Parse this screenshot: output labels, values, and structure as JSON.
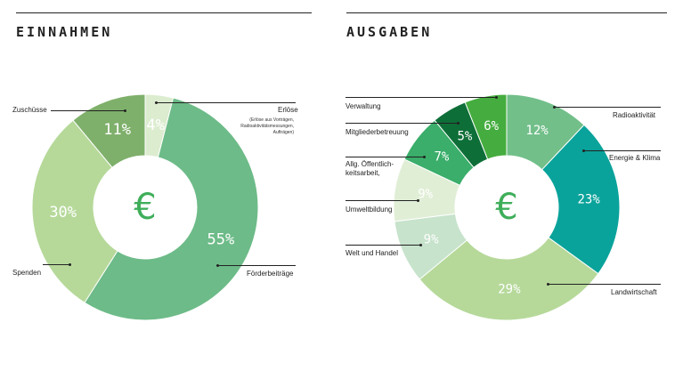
{
  "chart_data": [
    {
      "type": "pie",
      "title": "EINNAHMEN",
      "center_symbol": "€",
      "categories": [
        "Erlöse",
        "Förderbeiträge",
        "Spenden",
        "Zuschüsse"
      ],
      "values": [
        4,
        55,
        30,
        11
      ],
      "labels": [
        "4%",
        "55%",
        "30%",
        "11%"
      ],
      "colors": [
        "#dceccf",
        "#6dbb88",
        "#b6d99a",
        "#7fb06b"
      ],
      "annotations": {
        "Erlöse": "(Erlöse aus Vorträgen, Radioaktivitätsmessungen, Aufträgen)"
      }
    },
    {
      "type": "pie",
      "title": "AUSGABEN",
      "center_symbol": "€",
      "categories": [
        "Radioaktivität",
        "Energie & Klima",
        "Landwirtschaft",
        "Welt und Handel",
        "Umweltbildung",
        "Allg. Öffentlichkeitsarbeit,",
        "Mitgliederbetreuung",
        "Verwaltung"
      ],
      "values": [
        12,
        23,
        29,
        9,
        9,
        7,
        5,
        6
      ],
      "labels": [
        "12%",
        "23%",
        "29%",
        "9%",
        "9%",
        "7%",
        "5%",
        "6%"
      ],
      "colors": [
        "#72bf8a",
        "#0aa39b",
        "#b6d99a",
        "#c7e3cc",
        "#e0eed6",
        "#3aae6a",
        "#0e6e38",
        "#45ad3f"
      ]
    }
  ],
  "left": {
    "title": "EINNAHMEN",
    "center": "€",
    "labels": {
      "erloese": "Erlöse",
      "erloese_note_1": "(Erlöse aus Vorträgen,",
      "erloese_note_2": "Radioaktivitätsmessungen,",
      "erloese_note_3": "Aufträgen)",
      "zuschuesse": "Zuschüsse",
      "spenden": "Spenden",
      "foerderbeitraege": "Förderbeiträge"
    }
  },
  "right": {
    "title": "AUSGABEN",
    "center": "€",
    "labels": {
      "verwaltung": "Verwaltung",
      "mitglieder": "Mitgliederbetreuung",
      "oeff_1": "Allg. Öffentlich-",
      "oeff_2": "keitsarbeit,",
      "umwelt": "Umweltbildung",
      "welt": "Welt und Handel",
      "radio": "Radioaktivität",
      "energie": "Energie & Klima",
      "landwirtschaft": "Landwirtschaft"
    }
  }
}
